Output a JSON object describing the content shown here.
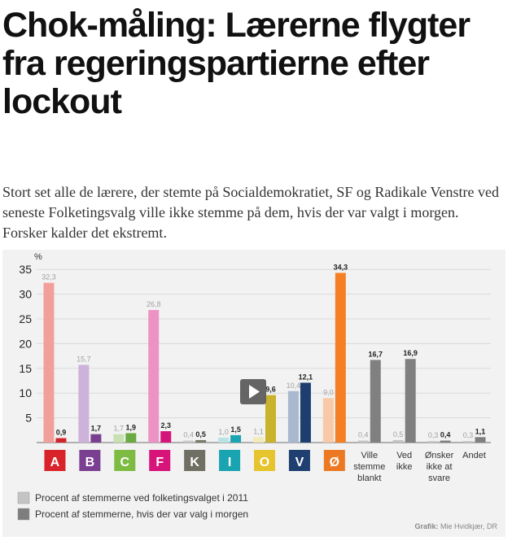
{
  "article": {
    "headline": "Chok-måling: Lærerne flygter fra regeringspartierne efter lockout",
    "subhead": "Stort set alle de lærere, der stemte på Socialdemokratiet, SF og Radikale Venstre ved seneste Folketingsvalg ville ikke stemme på dem, hvis der var valgt i morgen. Forsker kalder det ekstremt."
  },
  "chart_data": {
    "type": "bar",
    "ylabel": "%",
    "ylim": [
      0,
      35
    ],
    "yticks": [
      5,
      10,
      15,
      20,
      25,
      30,
      35
    ],
    "grid": true,
    "categories": [
      "A",
      "B",
      "C",
      "F",
      "K",
      "I",
      "O",
      "V",
      "Ø",
      "Ville stemme blankt",
      "Ved ikke",
      "Ønsker ikke at svare",
      "Andet"
    ],
    "category_lines": [
      [
        "A"
      ],
      [
        "B"
      ],
      [
        "C"
      ],
      [
        "F"
      ],
      [
        "K"
      ],
      [
        "I"
      ],
      [
        "O"
      ],
      [
        "V"
      ],
      [
        "Ø"
      ],
      [
        "Ville",
        "stemme",
        "blankt"
      ],
      [
        "Ved",
        "ikke"
      ],
      [
        "Ønsker",
        "ikke at",
        "svare"
      ],
      [
        "Andet"
      ]
    ],
    "series": [
      {
        "name": "Procent af stemmerne ved folketingsvalget i 2011",
        "values": [
          32.3,
          15.7,
          1.7,
          26.8,
          0.4,
          1.0,
          1.1,
          10.4,
          9.0,
          0.4,
          0.5,
          0.3,
          0.3
        ],
        "labels": [
          "32,3",
          "15,7",
          "1,7",
          "26,8",
          "0,4",
          "1,0",
          "1,1",
          "10,4",
          "9,0",
          "0,4",
          "0,5",
          "0,3",
          "0,3"
        ]
      },
      {
        "name": "Procent af stemmerne, hvis der var valg i morgen",
        "values": [
          0.9,
          1.7,
          1.9,
          2.3,
          0.5,
          1.5,
          9.6,
          12.1,
          34.3,
          16.7,
          16.9,
          0.4,
          1.1
        ],
        "labels": [
          "0,9",
          "1,7",
          "1,9",
          "2,3",
          "0,5",
          "1,5",
          "9,6",
          "12,1",
          "34,3",
          "16,7",
          "16,9",
          "0,4",
          "1,1"
        ]
      }
    ],
    "colors_2011": [
      "#f29f9c",
      "#cdb2d9",
      "#c9dfb4",
      "#ec93c4",
      "#c8c8c8",
      "#b7e3e6",
      "#f0ebb8",
      "#a8b8cf",
      "#f8c9a6",
      "#c4c4c4",
      "#c4c4c4",
      "#c4c4c4",
      "#c4c4c4"
    ],
    "colors_now": [
      "#d2232a",
      "#7a3f91",
      "#6aaa42",
      "#d4147a",
      "#7a7a6a",
      "#1aa3b0",
      "#c9b22c",
      "#1d3e6e",
      "#f47f24",
      "#808080",
      "#808080",
      "#808080",
      "#808080"
    ],
    "badge_colors": [
      "#d8232a",
      "#7b3f91",
      "#7dbb42",
      "#d6147a",
      "#6f6f63",
      "#1aa3b0",
      "#e6c42e",
      "#1f3f70",
      "#ec7922",
      null,
      null,
      null,
      null
    ],
    "legend_placement": "bottom-left",
    "legend_colors": [
      "#c4c4c4",
      "#7d7d7d"
    ],
    "credit_label": "Grafik:",
    "credit_name": "Mie Hvidkjær, DR",
    "play_button": "play-icon"
  }
}
